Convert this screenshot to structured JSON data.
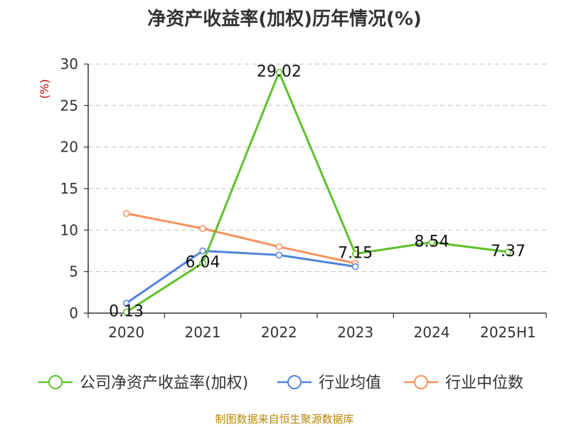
{
  "chart_data": {
    "type": "line",
    "title": "净资产收益率(加权)历年情况(%)",
    "ylabel": "(%)",
    "categories": [
      "2020",
      "2021",
      "2022",
      "2023",
      "2024",
      "2025H1"
    ],
    "ylim": [
      0,
      30
    ],
    "yticks": [
      0,
      5,
      10,
      15,
      20,
      25,
      30
    ],
    "grid": true,
    "legend_position": "bottom",
    "series": [
      {
        "name": "公司净资产收益率(加权)",
        "color": "#5ec12a",
        "values": [
          0.13,
          6.04,
          29.02,
          7.15,
          8.54,
          7.37
        ],
        "labels": [
          "0.13",
          "6.04",
          "29.02",
          "7.15",
          "8.54",
          "7.37"
        ]
      },
      {
        "name": "行业均值",
        "color": "#4f84d9",
        "values": [
          1.2,
          7.5,
          7.0,
          5.6,
          null,
          null
        ]
      },
      {
        "name": "行业中位数",
        "color": "#f5925a",
        "values": [
          12.0,
          10.2,
          8.0,
          6.0,
          null,
          null
        ]
      }
    ]
  },
  "source": "制图数据来自恒生聚源数据库"
}
